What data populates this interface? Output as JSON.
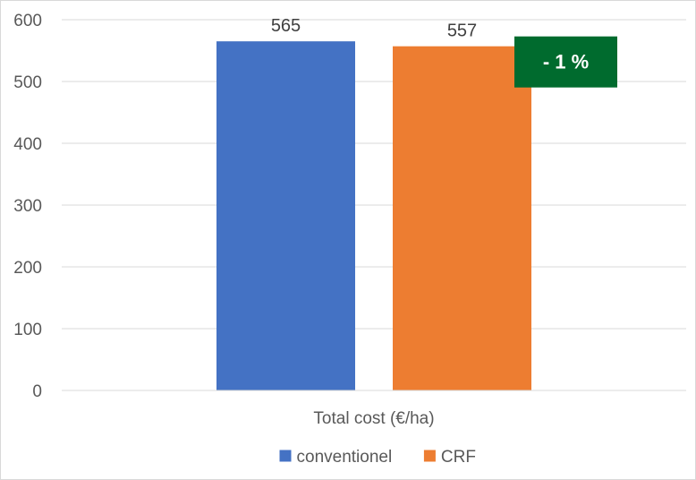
{
  "chart_data": {
    "type": "bar",
    "categories": [
      "Total cost (€/ha)"
    ],
    "series": [
      {
        "name": "conventionel",
        "values": [
          565
        ],
        "color": "#4472c4"
      },
      {
        "name": "CRF",
        "values": [
          557
        ],
        "color": "#ed7d31"
      }
    ],
    "ylim": [
      0,
      600
    ],
    "yticks": [
      0,
      100,
      200,
      300,
      400,
      500,
      600
    ],
    "grid": true,
    "legend": "bottom",
    "annotation": {
      "text": "- 1 %",
      "color": "#006b2e"
    }
  }
}
